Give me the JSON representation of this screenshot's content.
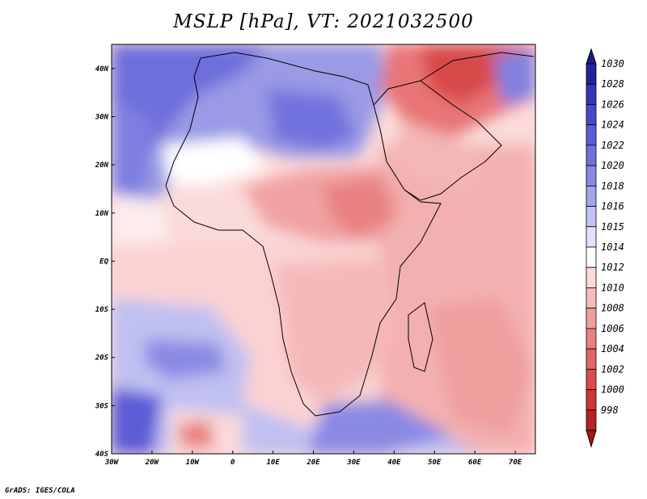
{
  "title": "MSLP [hPa], VT: 2021032500",
  "credit": "GrADS: IGES/COLA",
  "axes": {
    "lon_ticks": [
      "30W",
      "20W",
      "10W",
      "0",
      "10E",
      "20E",
      "30E",
      "40E",
      "50E",
      "60E",
      "70E"
    ],
    "lat_ticks": [
      "40N",
      "30N",
      "20N",
      "10N",
      "EQ",
      "10S",
      "20S",
      "30S",
      "40S"
    ],
    "lon_range": [
      -30,
      75
    ],
    "lat_range": [
      -40,
      45
    ]
  },
  "colorbar": {
    "levels": [
      "1030",
      "1028",
      "1026",
      "1024",
      "1022",
      "1020",
      "1018",
      "1016",
      "1015",
      "1014",
      "1012",
      "1010",
      "1008",
      "1006",
      "1004",
      "1002",
      "1000",
      "998"
    ],
    "colors": [
      "#23239b",
      "#3434b4",
      "#4848c8",
      "#5c5cd6",
      "#7070de",
      "#8a8ae4",
      "#a4a4ec",
      "#c2c2f4",
      "#e2e2fa",
      "#ffffff",
      "#fbdada",
      "#f6bcbc",
      "#ef9e9e",
      "#e98080",
      "#e36464",
      "#dc4a4a",
      "#cf3636",
      "#b42222"
    ],
    "top_arrow_color": "#1a1a8c",
    "bottom_arrow_color": "#a01818"
  }
}
